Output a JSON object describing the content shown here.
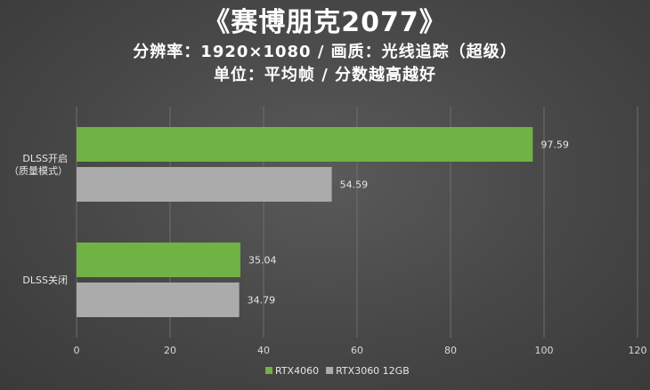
{
  "chart_data": {
    "type": "bar",
    "orientation": "horizontal",
    "title": "《赛博朋克2077》",
    "subtitle": "分辨率：1920×1080 / 画质：光线追踪（超级）",
    "subtitle2": "单位：平均帧 / 分数越高越好",
    "categories": [
      [
        "DLSS开启",
        "（质量模式）"
      ],
      [
        "DLSS关闭"
      ]
    ],
    "series": [
      {
        "name": "RTX4060",
        "color": "#70b244",
        "values": [
          97.59,
          35.04
        ]
      },
      {
        "name": "RTX3060 12GB",
        "color": "#ababab",
        "values": [
          54.59,
          34.79
        ]
      }
    ],
    "xlim": [
      0,
      120
    ],
    "xticks": [
      0,
      20,
      40,
      60,
      80,
      100,
      120
    ],
    "grid": true,
    "legend": "bottom"
  }
}
